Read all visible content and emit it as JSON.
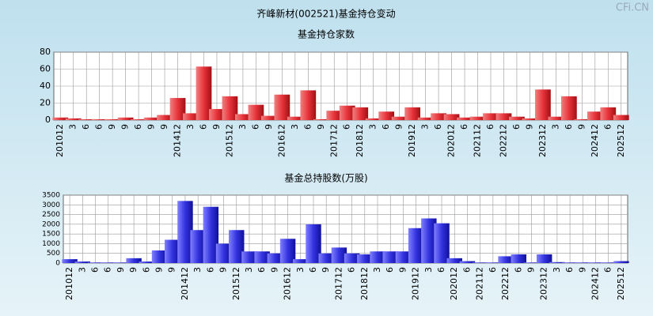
{
  "title": "齐峰新材(002521)基金持仓变动",
  "watermark": "CFi.CN",
  "chart_data": [
    {
      "type": "bar",
      "title": "基金持仓家数",
      "color": "#e8333a",
      "categories": [
        "201012",
        "3",
        "6",
        "6",
        "9",
        "9",
        "6",
        "9",
        "9",
        "201412",
        "3",
        "6",
        "9",
        "201512",
        "3",
        "6",
        "9",
        "201612",
        "3",
        "6",
        "9",
        "201712",
        "6",
        "201812",
        "3",
        "6",
        "9",
        "201912",
        "3",
        "6",
        "202012",
        "6",
        "202112",
        "6",
        "202212",
        "6",
        "9",
        "202312",
        "3",
        "6",
        "9",
        "202412",
        "6",
        "202512"
      ],
      "values": [
        3,
        2,
        1,
        1,
        1,
        3,
        1,
        3,
        6,
        26,
        8,
        63,
        13,
        28,
        7,
        18,
        5,
        30,
        4,
        35,
        1,
        11,
        17,
        15,
        2,
        10,
        4,
        15,
        3,
        8,
        7,
        3,
        4,
        8,
        8,
        4,
        2,
        36,
        4,
        28,
        1,
        10,
        15,
        6
      ],
      "ylim": [
        0,
        80
      ],
      "yticks": [
        0,
        20,
        40,
        60,
        80
      ],
      "grid": true
    },
    {
      "type": "bar",
      "title": "基金总持股数(万股)",
      "color": "#3333e0",
      "categories": [
        "201012",
        "3",
        "6",
        "6",
        "9",
        "9",
        "6",
        "9",
        "9",
        "201412",
        "3",
        "6",
        "9",
        "201512",
        "3",
        "6",
        "9",
        "201612",
        "3",
        "6",
        "9",
        "201712",
        "6",
        "201812",
        "3",
        "6",
        "9",
        "201912",
        "3",
        "6",
        "202012",
        "6",
        "202112",
        "6",
        "202212",
        "6",
        "9",
        "202312",
        "3",
        "6",
        "9",
        "202412",
        "6",
        "202512"
      ],
      "values": [
        200,
        80,
        30,
        30,
        30,
        250,
        80,
        650,
        1200,
        3200,
        1700,
        2900,
        1000,
        1700,
        600,
        600,
        500,
        1250,
        200,
        2000,
        500,
        800,
        500,
        450,
        600,
        600,
        600,
        1800,
        2300,
        2050,
        250,
        100,
        30,
        30,
        350,
        450,
        30,
        450,
        50,
        30,
        30,
        30,
        30,
        100
      ],
      "ylim": [
        0,
        3500
      ],
      "yticks": [
        0,
        500,
        1000,
        1500,
        2000,
        2500,
        3000,
        3500
      ],
      "grid": true
    }
  ]
}
